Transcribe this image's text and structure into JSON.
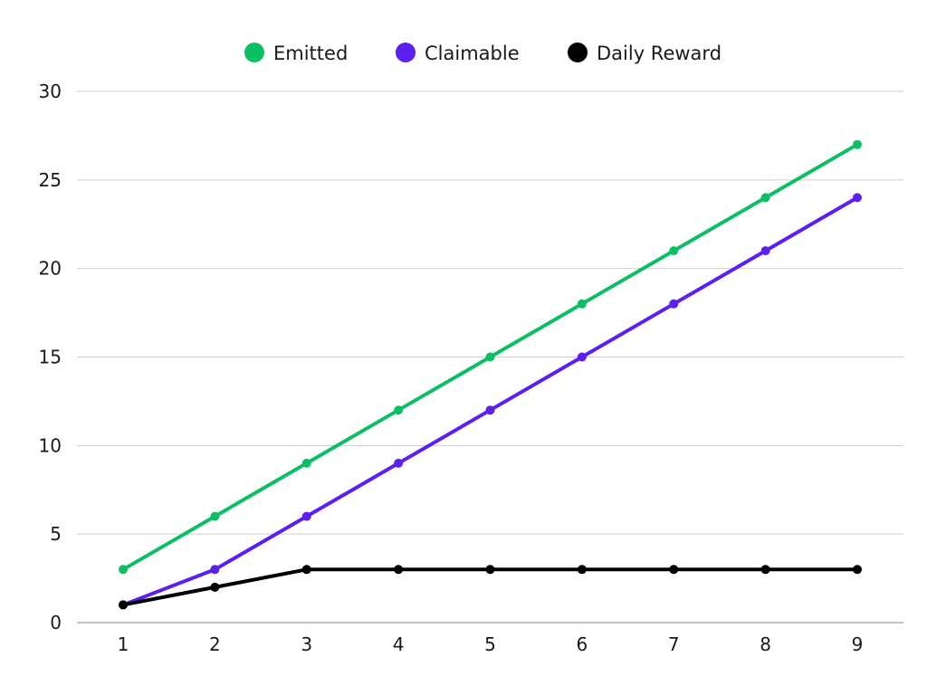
{
  "chart_data": {
    "type": "line",
    "title": "",
    "xlabel": "",
    "ylabel": "",
    "categories": [
      "1",
      "2",
      "3",
      "4",
      "5",
      "6",
      "7",
      "8",
      "9"
    ],
    "x": [
      1,
      2,
      3,
      4,
      5,
      6,
      7,
      8,
      9
    ],
    "ylim": [
      0,
      30
    ],
    "yticks": [
      "0",
      "5",
      "10",
      "15",
      "20",
      "25",
      "30"
    ],
    "grid": true,
    "legend_position": "top-center",
    "series": [
      {
        "name": "Emitted",
        "color": "#0cbf63",
        "values": [
          3,
          6,
          9,
          12,
          15,
          18,
          21,
          24,
          27
        ]
      },
      {
        "name": "Claimable",
        "color": "#5b1ff0",
        "values": [
          1,
          3,
          6,
          9,
          12,
          15,
          18,
          21,
          24
        ]
      },
      {
        "name": "Daily Reward",
        "color": "#000000",
        "values": [
          1,
          2,
          3,
          3,
          3,
          3,
          3,
          3,
          3
        ]
      }
    ]
  }
}
